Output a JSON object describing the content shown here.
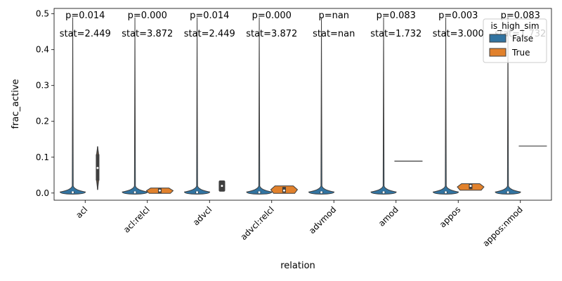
{
  "chart_data": {
    "type": "violin",
    "xlabel": "relation",
    "ylabel": "frac_active",
    "ylim": [
      -0.02,
      0.515
    ],
    "y_ticks": [
      0.0,
      0.1,
      0.2,
      0.3,
      0.4,
      0.5
    ],
    "y_tick_labels": [
      "0.0",
      "0.1",
      "0.2",
      "0.3",
      "0.4",
      "0.5"
    ],
    "categories": [
      "acl",
      "acl:relcl",
      "advcl",
      "advcl:relcl",
      "advmod",
      "amod",
      "appos",
      "appos:nmod"
    ],
    "legend": {
      "title": "is_high_sim",
      "placement": "top-right",
      "entries": [
        {
          "label": "False",
          "color": "#3274a1"
        },
        {
          "label": "True",
          "color": "#e1812c"
        }
      ]
    },
    "series": [
      {
        "name": "False",
        "color": "#3274a1",
        "violins": [
          {
            "max": 0.49,
            "min": -0.003,
            "q1": 0.0,
            "median": 0.002,
            "q3": 0.004
          },
          {
            "max": 0.49,
            "min": -0.003,
            "q1": 0.0,
            "median": 0.002,
            "q3": 0.004
          },
          {
            "max": 0.49,
            "min": -0.003,
            "q1": 0.0,
            "median": 0.002,
            "q3": 0.004
          },
          {
            "max": 0.49,
            "min": -0.003,
            "q1": 0.0,
            "median": 0.002,
            "q3": 0.004
          },
          {
            "max": 0.49,
            "min": -0.003,
            "q1": 0.0,
            "median": 0.002,
            "q3": 0.004
          },
          {
            "max": 0.49,
            "min": -0.003,
            "q1": 0.0,
            "median": 0.002,
            "q3": 0.004
          },
          {
            "max": 0.49,
            "min": -0.003,
            "q1": 0.0,
            "median": 0.002,
            "q3": 0.004
          },
          {
            "max": 0.49,
            "min": -0.003,
            "q1": 0.0,
            "median": 0.002,
            "q3": 0.004
          }
        ]
      },
      {
        "name": "True",
        "color": "#e1812c",
        "violins": [
          {
            "kind": "thin",
            "min": 0.009,
            "max": 0.13,
            "q1": 0.035,
            "median": 0.07,
            "q3": 0.108
          },
          {
            "kind": "wide",
            "min": -0.001,
            "max": 0.014,
            "q1": 0.0,
            "median": 0.007,
            "q3": 0.013
          },
          {
            "kind": "box",
            "min": 0.004,
            "max": 0.035,
            "q1": 0.007,
            "median": 0.02,
            "q3": 0.033
          },
          {
            "kind": "wide",
            "min": -0.001,
            "max": 0.02,
            "q1": 0.001,
            "median": 0.007,
            "q3": 0.017
          },
          {
            "kind": "none"
          },
          {
            "kind": "line",
            "value": 0.089
          },
          {
            "kind": "wide",
            "min": 0.008,
            "max": 0.026,
            "q1": 0.011,
            "median": 0.02,
            "q3": 0.025
          },
          {
            "kind": "line",
            "value": 0.131
          }
        ]
      }
    ],
    "annotations": [
      {
        "p": "p=0.014",
        "stat": "stat=2.449"
      },
      {
        "p": "p=0.000",
        "stat": "stat=3.872"
      },
      {
        "p": "p=0.014",
        "stat": "stat=2.449"
      },
      {
        "p": "p=0.000",
        "stat": "stat=3.872"
      },
      {
        "p": "p=nan",
        "stat": "stat=nan"
      },
      {
        "p": "p=0.083",
        "stat": "stat=1.732"
      },
      {
        "p": "p=0.003",
        "stat": "stat=3.000"
      },
      {
        "p": "p=0.083",
        "stat": "stat=1.732"
      }
    ]
  }
}
